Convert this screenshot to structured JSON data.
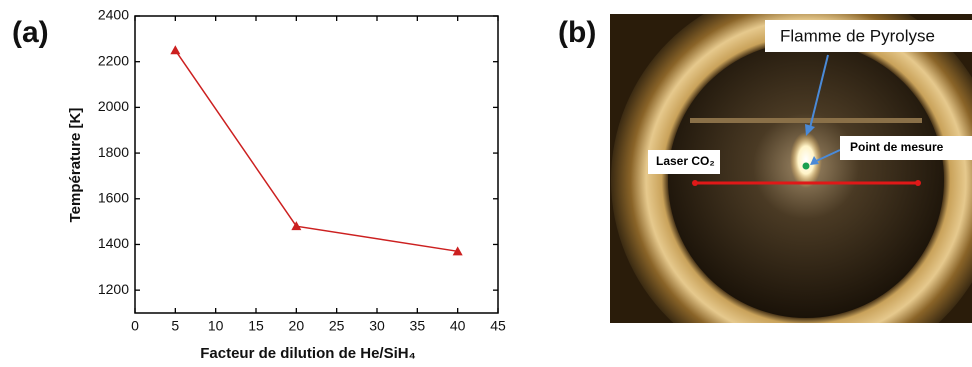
{
  "panels": {
    "a": "(a)",
    "b": "(b)"
  },
  "chart_data": {
    "type": "line",
    "x_label": "Facteur de dilution de He/SiH₄",
    "y_label": "Température [K]",
    "x": [
      5,
      20,
      40
    ],
    "values": [
      2250,
      1480,
      1370
    ],
    "color": "#cc2020",
    "marker": "triangle",
    "xlim": [
      0,
      45
    ],
    "xticks": [
      0,
      5,
      10,
      15,
      20,
      25,
      30,
      35,
      40,
      45
    ],
    "ylim": [
      1100,
      2400
    ],
    "yticks": [
      1200,
      1400,
      1600,
      1800,
      2000,
      2200,
      2400
    ]
  },
  "photo": {
    "flame_label": "Flamme de Pyrolyse",
    "point_label": "Point de mesure",
    "laser_label": "Laser CO₂"
  }
}
